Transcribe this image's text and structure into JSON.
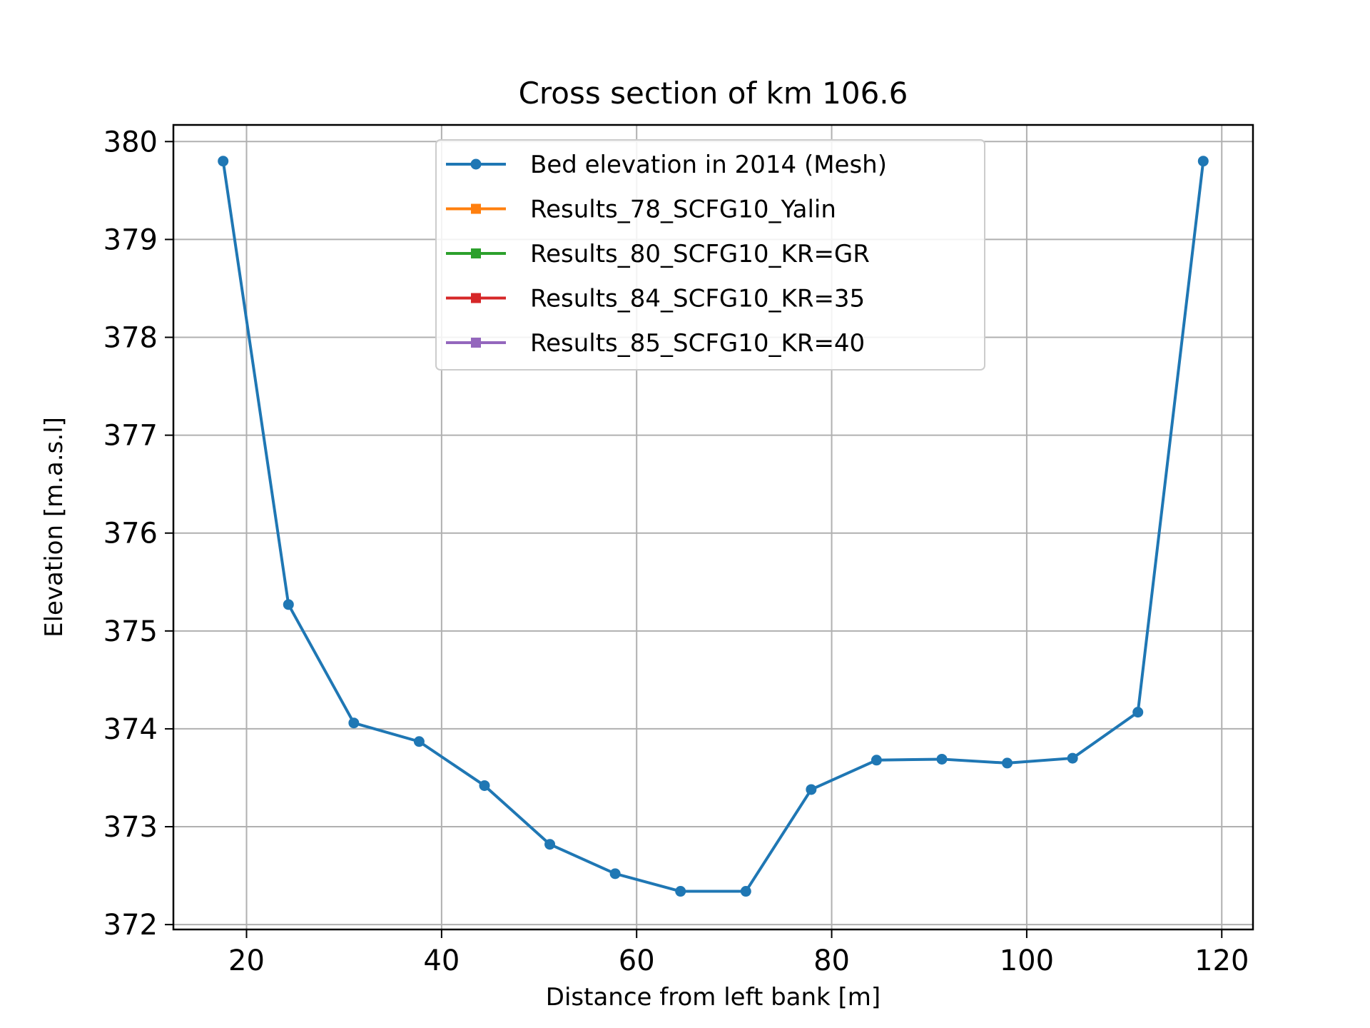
{
  "chart_data": {
    "type": "line",
    "title": "Cross section of km 106.6",
    "xlabel": "Distance from left bank [m]",
    "ylabel": "Elevation [m.a.s.l]",
    "xlim": [
      12.5,
      123.2
    ],
    "ylim": [
      371.95,
      380.17
    ],
    "xticks": [
      20,
      40,
      60,
      80,
      100,
      120
    ],
    "yticks": [
      372,
      373,
      374,
      375,
      376,
      377,
      378,
      379,
      380
    ],
    "grid": true,
    "legend_position": "upper center",
    "series": [
      {
        "name": "Bed elevation in 2014 (Mesh)",
        "color": "#1f77b4",
        "marker": "circle",
        "x": [
          17.6,
          24.3,
          31.0,
          37.7,
          44.4,
          51.1,
          57.8,
          64.5,
          71.2,
          77.9,
          84.6,
          91.3,
          98.0,
          104.7,
          111.4,
          118.1
        ],
        "y": [
          379.8,
          375.27,
          374.06,
          373.87,
          373.42,
          372.82,
          372.52,
          372.34,
          372.34,
          373.38,
          373.68,
          373.69,
          373.65,
          373.7,
          374.17,
          379.8
        ]
      },
      {
        "name": "Results_78_SCFG10_Yalin",
        "color": "#ff7f0e",
        "marker": "square",
        "x": [],
        "y": []
      },
      {
        "name": "Results_80_SCFG10_KR=GR",
        "color": "#2ca02c",
        "marker": "square",
        "x": [],
        "y": []
      },
      {
        "name": "Results_84_SCFG10_KR=35",
        "color": "#d62728",
        "marker": "square",
        "x": [],
        "y": []
      },
      {
        "name": "Results_85_SCFG10_KR=40",
        "color": "#9467bd",
        "marker": "square",
        "x": [],
        "y": []
      }
    ]
  }
}
